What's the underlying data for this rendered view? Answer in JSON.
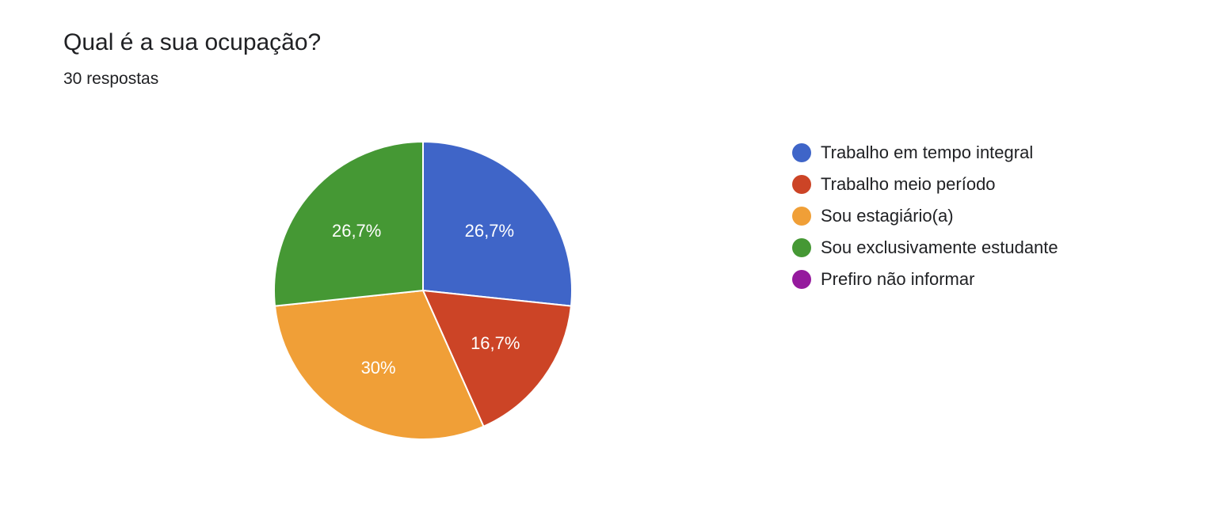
{
  "header": {
    "title": "Qual é a sua ocupação?",
    "subtitle": "30 respostas"
  },
  "chart_data": {
    "type": "pie",
    "title": "Qual é a sua ocupação?",
    "subtitle": "30 respostas",
    "legend_position": "right",
    "start_angle_deg": 90,
    "direction": "clockwise",
    "slices": [
      {
        "label": "Trabalho em tempo integral",
        "value": 8,
        "percent_label": "26,7%",
        "color": "#3f65c8"
      },
      {
        "label": "Trabalho meio período",
        "value": 5,
        "percent_label": "16,7%",
        "color": "#cc4426"
      },
      {
        "label": "Sou estagiário(a)",
        "value": 9,
        "percent_label": "30%",
        "color": "#f09f37"
      },
      {
        "label": "Sou exclusivamente estudante",
        "value": 8,
        "percent_label": "26,7%",
        "color": "#459834"
      },
      {
        "label": "Prefiro não informar",
        "value": 0,
        "percent_label": "",
        "color": "#951a9d"
      }
    ]
  }
}
